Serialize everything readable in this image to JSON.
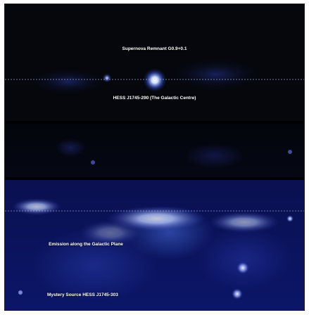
{
  "panels": {
    "top": {
      "title": "Supernova Remnant G0.9+0.1",
      "caption": "HESS J1745-290 (The Galactic Centre)"
    },
    "bottom": {
      "plane_label": "Emission along the Galactic Plane",
      "source_label": "Mystery Source HESS J1745-303"
    }
  },
  "colors": {
    "background": "#000000",
    "sky_blue": "#1a2a9a",
    "glow": "#e8f0ff"
  }
}
